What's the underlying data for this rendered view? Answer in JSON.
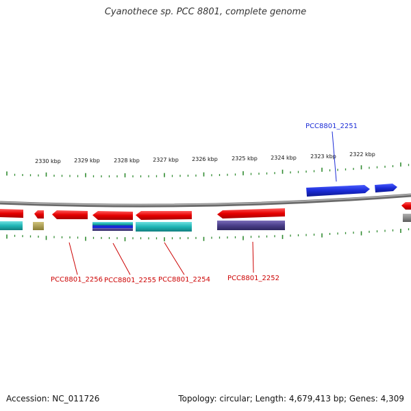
{
  "header": {
    "title": "Cyanothece sp. PCC 8801, complete genome"
  },
  "footer": {
    "accession": "Accession: NC_011726",
    "topology": "Topology: circular; Length: 4,679,413 bp; Genes: 4,309"
  },
  "scale": {
    "labels": [
      "2330 kbp",
      "2329 kbp",
      "2328 kbp",
      "2327 kbp",
      "2326 kbp",
      "2325 kbp",
      "2324 kbp",
      "2323 kbp",
      "2322 kbp"
    ]
  },
  "genes": [
    {
      "id": "PCC8801_2251",
      "label": "PCC8801_2251",
      "color": "#1a2bd6",
      "strand": "forward"
    },
    {
      "id": "PCC8801_2252",
      "label": "PCC8801_2252",
      "color": "#e60000",
      "strand": "reverse"
    },
    {
      "id": "PCC8801_2254",
      "label": "PCC8801_2254",
      "color": "#e60000",
      "strand": "reverse"
    },
    {
      "id": "PCC8801_2255",
      "label": "PCC8801_2255",
      "color": "#e60000",
      "strand": "reverse"
    },
    {
      "id": "PCC8801_2256",
      "label": "PCC8801_2256",
      "color": "#e60000",
      "strand": "reverse"
    }
  ],
  "colors": {
    "backbone": "#8a8a8a",
    "ticks": "#2f8a2f",
    "forward_gene": "#1a2bd6",
    "reverse_gene": "#e60000",
    "feature_cyan": "#1fb5b5",
    "feature_purple": "#4b3f8a",
    "feature_olive": "#a89a45"
  }
}
